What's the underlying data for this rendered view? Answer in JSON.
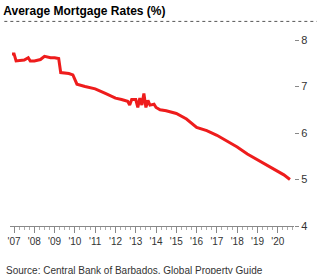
{
  "chart_data": {
    "type": "line",
    "title": "Average Mortgage Rates (%)",
    "annotations": [
      "Source: Central Bank of Barbados, Global Property Guide"
    ],
    "x": [
      2006.9,
      2007.0,
      2007.1,
      2007.5,
      2007.7,
      2007.8,
      2008.0,
      2008.3,
      2008.5,
      2008.8,
      2009.0,
      2009.2,
      2009.3,
      2009.7,
      2009.9,
      2010.1,
      2010.5,
      2011.0,
      2011.5,
      2012.0,
      2012.3,
      2012.6,
      2012.7,
      2012.8,
      2013.0,
      2013.1,
      2013.2,
      2013.3,
      2013.4,
      2013.5,
      2013.6,
      2013.7,
      2013.9,
      2014.0,
      2014.2,
      2014.5,
      2015.0,
      2015.5,
      2016.0,
      2016.5,
      2017.0,
      2017.5,
      2018.0,
      2018.5,
      2019.0,
      2019.5,
      2020.0,
      2020.3,
      2020.6
    ],
    "values": [
      7.7,
      7.7,
      7.55,
      7.57,
      7.62,
      7.55,
      7.55,
      7.58,
      7.65,
      7.62,
      7.62,
      7.6,
      7.3,
      7.28,
      7.25,
      7.05,
      7.0,
      6.95,
      6.85,
      6.75,
      6.72,
      6.68,
      6.6,
      6.72,
      6.72,
      6.55,
      6.75,
      6.6,
      6.85,
      6.55,
      6.7,
      6.6,
      6.62,
      6.55,
      6.5,
      6.48,
      6.42,
      6.3,
      6.12,
      6.05,
      5.95,
      5.82,
      5.7,
      5.55,
      5.43,
      5.3,
      5.18,
      5.1,
      5.0
    ],
    "color": "#ee1c1c",
    "xlim": [
      2006.8,
      2020.8
    ],
    "xticks": [
      {
        "value": 2007,
        "label": "'07"
      },
      {
        "value": 2008,
        "label": "'08"
      },
      {
        "value": 2009,
        "label": "'09"
      },
      {
        "value": 2010,
        "label": "'10"
      },
      {
        "value": 2011,
        "label": "'11"
      },
      {
        "value": 2012,
        "label": "'12"
      },
      {
        "value": 2013,
        "label": "'13"
      },
      {
        "value": 2014,
        "label": "'14"
      },
      {
        "value": 2015,
        "label": "'15"
      },
      {
        "value": 2016,
        "label": "'16"
      },
      {
        "value": 2017,
        "label": "'17"
      },
      {
        "value": 2018,
        "label": "'18"
      },
      {
        "value": 2019,
        "label": "'19"
      },
      {
        "value": 2020,
        "label": "'20"
      }
    ],
    "ylim": [
      4,
      8
    ],
    "yticks": [
      4,
      5,
      6,
      7,
      8
    ],
    "grid": false
  }
}
